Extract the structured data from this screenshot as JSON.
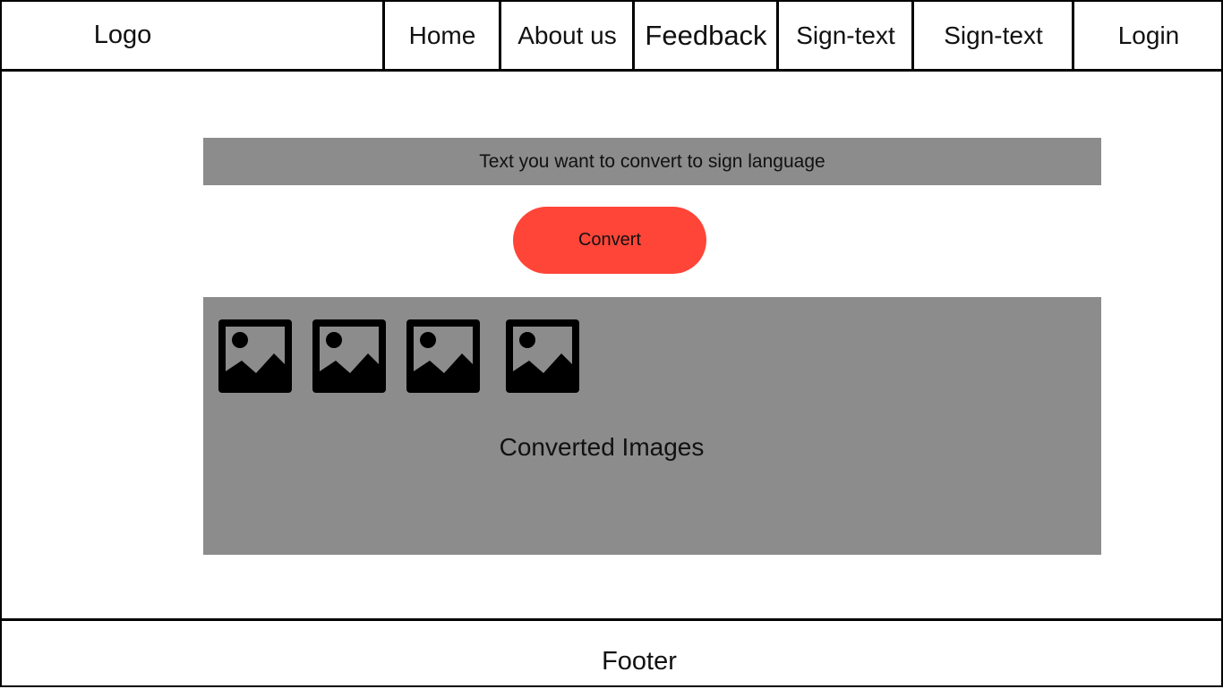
{
  "navbar": {
    "logo": "Logo",
    "items": [
      {
        "label": "Home"
      },
      {
        "label": "About us"
      },
      {
        "label": "Feedback"
      },
      {
        "label": "Sign-text"
      },
      {
        "label": "Sign-text"
      },
      {
        "label": "Login"
      }
    ]
  },
  "main": {
    "text_input": {
      "value": "",
      "placeholder": "Text you want to convert to sign language"
    },
    "convert_label": "Convert",
    "output": {
      "label": "Converted Images",
      "images": [
        "image-placeholder-icon",
        "image-placeholder-icon",
        "image-placeholder-icon",
        "image-placeholder-icon"
      ]
    }
  },
  "footer": {
    "label": "Footer"
  },
  "colors": {
    "panel": "#8c8c8c",
    "accent": "#ff4538",
    "border": "#000000"
  }
}
